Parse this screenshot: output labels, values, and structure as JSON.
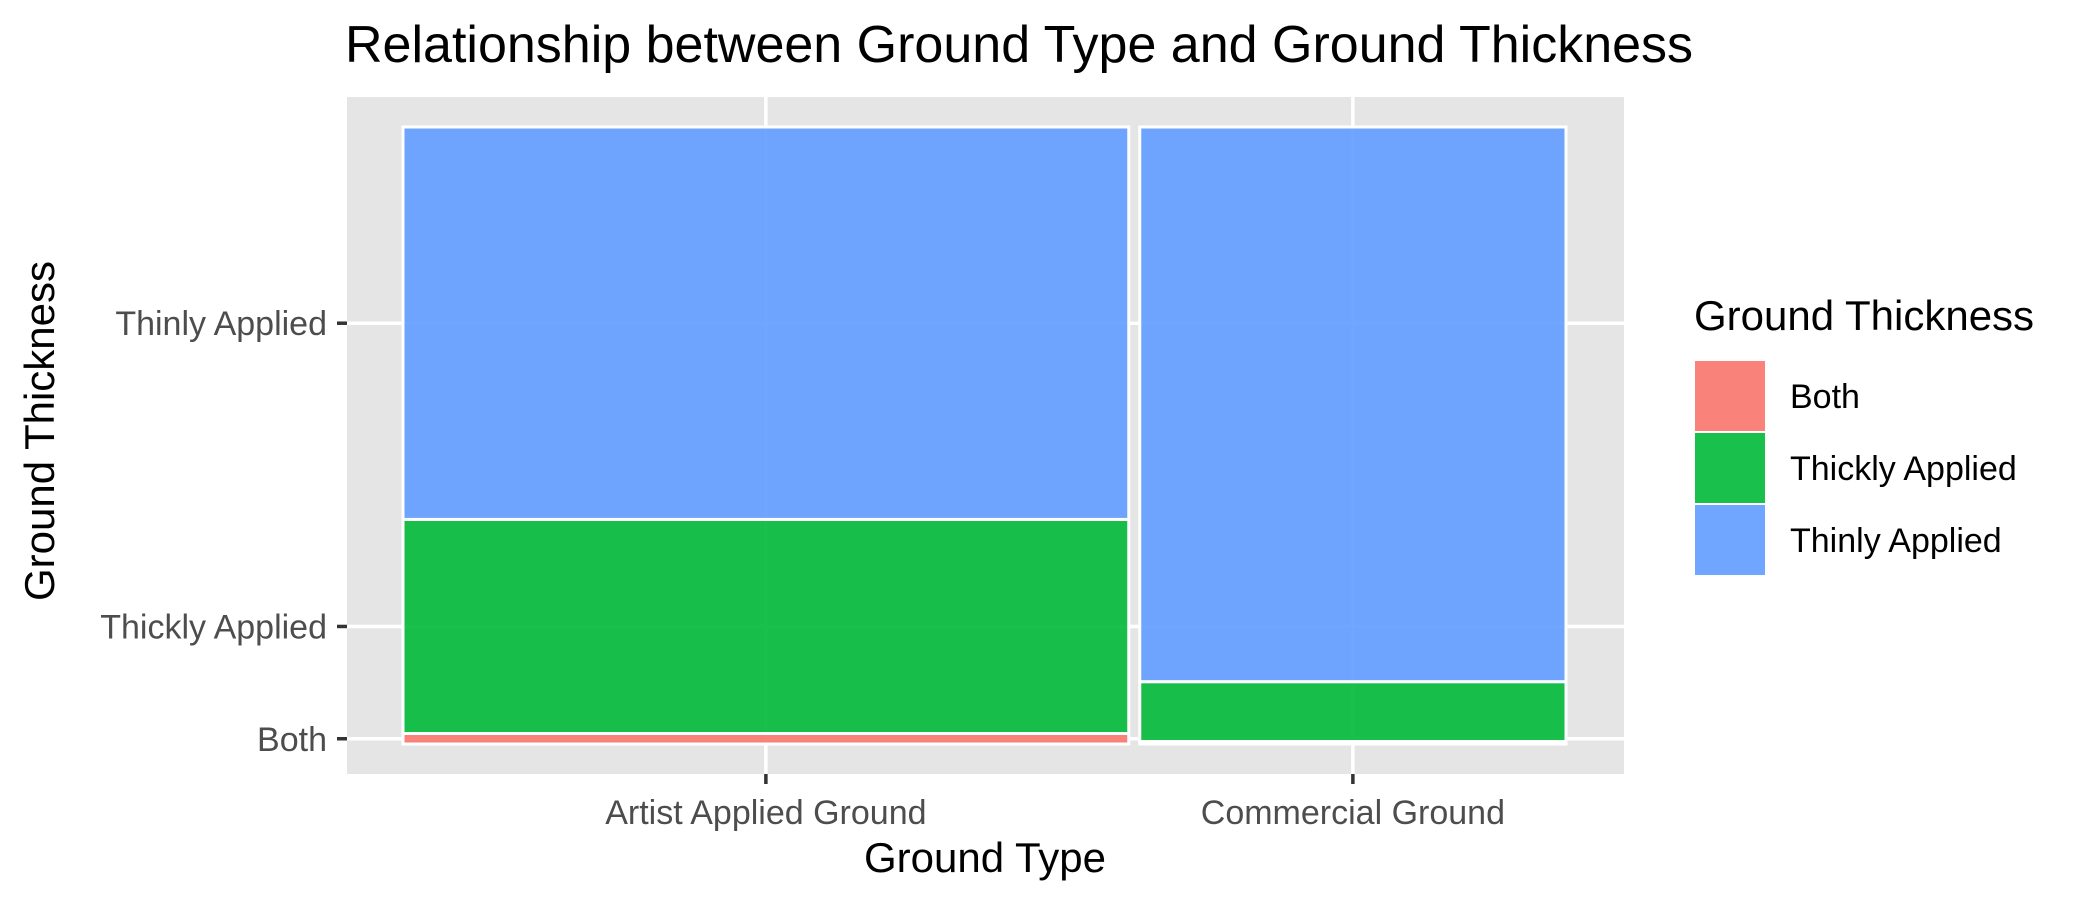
{
  "chart_data": {
    "type": "mosaic",
    "title": "Relationship between Ground Type and Ground Thickness",
    "xlabel": "Ground Type",
    "ylabel": "Ground Thickness",
    "categories": [
      "Artist Applied Ground",
      "Commercial Ground"
    ],
    "category_widths": [
      0.63,
      0.37
    ],
    "y_ticks": [
      "Both",
      "Thickly Applied",
      "Thinly Applied"
    ],
    "series": [
      {
        "name": "Both",
        "color": "#F8766D",
        "values": [
          0.017,
          0.004
        ]
      },
      {
        "name": "Thickly Applied",
        "color": "#00BA38",
        "values": [
          0.347,
          0.097
        ]
      },
      {
        "name": "Thinly Applied",
        "color": "#619CFF",
        "values": [
          0.636,
          0.899
        ]
      }
    ],
    "ylim": [
      0,
      1
    ],
    "legend": {
      "title": "Ground Thickness",
      "position": "right"
    },
    "grid": true,
    "panel_background": "#E5E5E5"
  }
}
